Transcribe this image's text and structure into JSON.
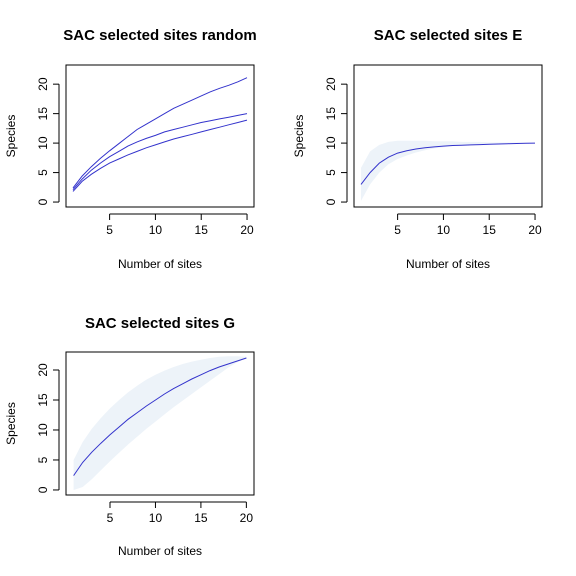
{
  "chart_data": [
    {
      "type": "line",
      "title": "SAC selected sites random",
      "xlabel": "Number of sites",
      "ylabel": "Species",
      "xlim": [
        0.24,
        20.76
      ],
      "ylim": [
        -0.84,
        23.25
      ],
      "x_ticks": [
        5,
        10,
        15,
        20
      ],
      "y_ticks": [
        0,
        5,
        10,
        15,
        20
      ],
      "x": [
        1,
        2,
        3,
        4,
        5,
        6,
        7,
        8,
        9,
        10,
        11,
        12,
        13,
        14,
        15,
        16,
        17,
        18,
        19,
        20
      ],
      "band": null,
      "series": [
        {
          "values": [
            2.4,
            4.4,
            6.0,
            7.4,
            8.7,
            9.9,
            11.1,
            12.3,
            13.2,
            14.1,
            15.0,
            15.9,
            16.6,
            17.3,
            18.0,
            18.7,
            19.3,
            19.8,
            20.4,
            21.1
          ]
        },
        {
          "values": [
            2.1,
            3.9,
            5.4,
            6.6,
            7.7,
            8.6,
            9.5,
            10.2,
            10.8,
            11.3,
            11.9,
            12.3,
            12.7,
            13.1,
            13.5,
            13.8,
            14.1,
            14.4,
            14.7,
            15.0
          ]
        },
        {
          "values": [
            1.8,
            3.5,
            4.7,
            5.7,
            6.6,
            7.3,
            8.0,
            8.6,
            9.2,
            9.7,
            10.2,
            10.7,
            11.1,
            11.5,
            11.9,
            12.3,
            12.7,
            13.1,
            13.5,
            13.9
          ]
        }
      ]
    },
    {
      "type": "line",
      "title": "SAC selected sites E",
      "xlabel": "Number of sites",
      "ylabel": "Species",
      "xlim": [
        0.24,
        20.76
      ],
      "ylim": [
        -0.84,
        23.25
      ],
      "x_ticks": [
        5,
        10,
        15,
        20
      ],
      "y_ticks": [
        0,
        5,
        10,
        15,
        20
      ],
      "x": [
        1,
        2,
        3,
        4,
        5,
        6,
        7,
        8,
        9,
        10,
        11,
        12,
        13,
        14,
        15,
        16,
        17,
        18,
        19,
        20
      ],
      "band": {
        "lower": [
          0.2,
          3.0,
          5.0,
          6.4,
          7.3,
          7.9,
          8.4,
          8.8,
          9.1,
          9.3,
          9.5,
          9.6,
          9.7,
          9.8,
          9.9,
          9.9,
          10.0,
          10.0,
          10.0,
          10.0
        ],
        "upper": [
          5.8,
          8.6,
          9.7,
          10.2,
          10.4,
          10.4,
          10.4,
          10.4,
          10.3,
          10.3,
          10.3,
          10.2,
          10.2,
          10.2,
          10.1,
          10.1,
          10.1,
          10.1,
          10.0,
          10.0
        ]
      },
      "series": [
        {
          "values": [
            3.0,
            5.0,
            6.6,
            7.6,
            8.3,
            8.7,
            9.0,
            9.2,
            9.35,
            9.5,
            9.6,
            9.65,
            9.7,
            9.75,
            9.8,
            9.85,
            9.9,
            9.93,
            9.96,
            10.0
          ]
        }
      ]
    },
    {
      "type": "line",
      "title": "SAC selected sites G",
      "xlabel": "Number of sites",
      "ylabel": "Species",
      "xlim": [
        0.16,
        20.84
      ],
      "ylim": [
        -0.84,
        23.0
      ],
      "x_ticks": [
        5,
        10,
        15,
        20
      ],
      "y_ticks": [
        0,
        5,
        10,
        15,
        20
      ],
      "x": [
        1,
        2,
        3,
        4,
        5,
        6,
        7,
        8,
        9,
        10,
        11,
        12,
        13,
        14,
        15,
        16,
        17,
        18,
        19,
        20
      ],
      "band": {
        "lower": [
          0.0,
          0.5,
          1.8,
          3.3,
          4.8,
          6.2,
          7.6,
          8.9,
          10.2,
          11.4,
          12.6,
          13.8,
          14.9,
          16.0,
          17.1,
          18.2,
          19.3,
          20.4,
          21.3,
          22.0
        ],
        "upper": [
          5.0,
          8.0,
          10.2,
          12.0,
          13.6,
          15.0,
          16.3,
          17.4,
          18.4,
          19.2,
          19.9,
          20.5,
          21.0,
          21.4,
          21.7,
          22.0,
          22.2,
          22.3,
          22.3,
          22.2
        ]
      },
      "series": [
        {
          "values": [
            2.4,
            4.6,
            6.3,
            7.8,
            9.2,
            10.5,
            11.8,
            12.9,
            14.0,
            15.0,
            16.0,
            16.9,
            17.7,
            18.5,
            19.2,
            19.9,
            20.5,
            21.0,
            21.5,
            22.0
          ]
        }
      ]
    }
  ]
}
